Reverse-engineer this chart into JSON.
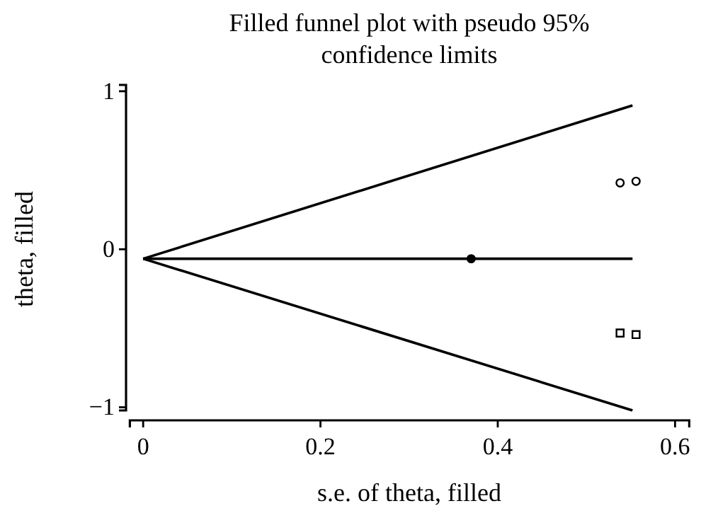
{
  "chart_data": {
    "type": "scatter",
    "title": "Filled funnel plot with pseudo 95% confidence limits",
    "xlabel": "s.e. of theta, filled",
    "ylabel": "theta, filled",
    "xlim": [
      -0.015,
      0.616
    ],
    "ylim": [
      -1.02,
      1.04
    ],
    "xticks": [
      0,
      0.2,
      0.4,
      0.6
    ],
    "yticks": [
      {
        "value": -1,
        "label": "−1"
      },
      0,
      1
    ],
    "grid": false,
    "series": [
      {
        "type": "line",
        "color": "#000000",
        "x": [
          0,
          0.552
        ],
        "values": [
          -0.06,
          0.91
        ]
      },
      {
        "type": "line",
        "color": "#000000",
        "x": [
          0,
          0.552
        ],
        "values": [
          -0.06,
          -0.06
        ]
      },
      {
        "type": "line",
        "color": "#000000",
        "x": [
          0,
          0.552
        ],
        "values": [
          -0.06,
          -1.02
        ]
      },
      {
        "type": "line",
        "marker": "circle",
        "color": "#000000",
        "x": [
          0.37
        ],
        "values": [
          -0.06
        ]
      },
      {
        "marker": "circle",
        "color": "#000000",
        "x": [
          0.538,
          0.556
        ],
        "values": [
          0.42,
          0.43
        ]
      },
      {
        "marker": "square",
        "color": "#000000",
        "x": [
          0.538,
          0.556
        ],
        "values": [
          -0.53,
          -0.54
        ]
      }
    ]
  }
}
